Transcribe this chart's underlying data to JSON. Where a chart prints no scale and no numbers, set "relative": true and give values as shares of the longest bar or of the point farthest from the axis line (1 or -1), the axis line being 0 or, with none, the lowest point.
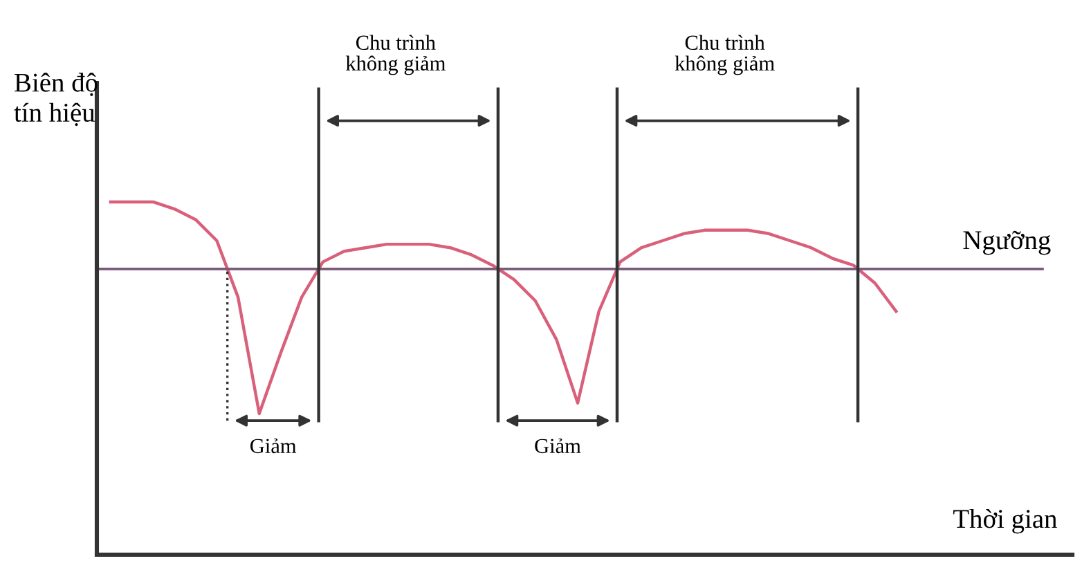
{
  "chart_data": {
    "type": "line",
    "relative": true,
    "ylabel": "Biên độ\ntín hiệu",
    "xlabel": "Thời gian",
    "grid": false,
    "legend": false,
    "marker": "none",
    "line_style": "solid",
    "categories": [
      null,
      null,
      null,
      null,
      null,
      null,
      null,
      null,
      null,
      null,
      null,
      null,
      null,
      null,
      null,
      null,
      null,
      null,
      null,
      null,
      null,
      null,
      null,
      null,
      null,
      null,
      null,
      null,
      null,
      null,
      null,
      null,
      null,
      null,
      null,
      null,
      null,
      null
    ],
    "series": [
      {
        "color": "#d9607a",
        "values": [
          1.0,
          1.0,
          1.0,
          0.98,
          0.95,
          0.89,
          0.73,
          0.4,
          0.57,
          0.73,
          0.83,
          0.86,
          0.87,
          0.88,
          0.88,
          0.88,
          0.87,
          0.85,
          0.82,
          0.78,
          0.72,
          0.61,
          0.43,
          0.69,
          0.83,
          0.87,
          0.89,
          0.91,
          0.92,
          0.92,
          0.92,
          0.91,
          0.89,
          0.87,
          0.84,
          0.82,
          0.77,
          0.69
        ]
      }
    ],
    "ref_lines": [
      {
        "axis": "y",
        "value": 0.81,
        "label": "Ngưỡng",
        "color": "#7a5a7a",
        "line_style": "solid"
      }
    ],
    "annotations": [
      "Giảm",
      "Chu trình\nkhông giảm",
      "Giảm",
      "Chu trình\nkhông giảm"
    ]
  }
}
